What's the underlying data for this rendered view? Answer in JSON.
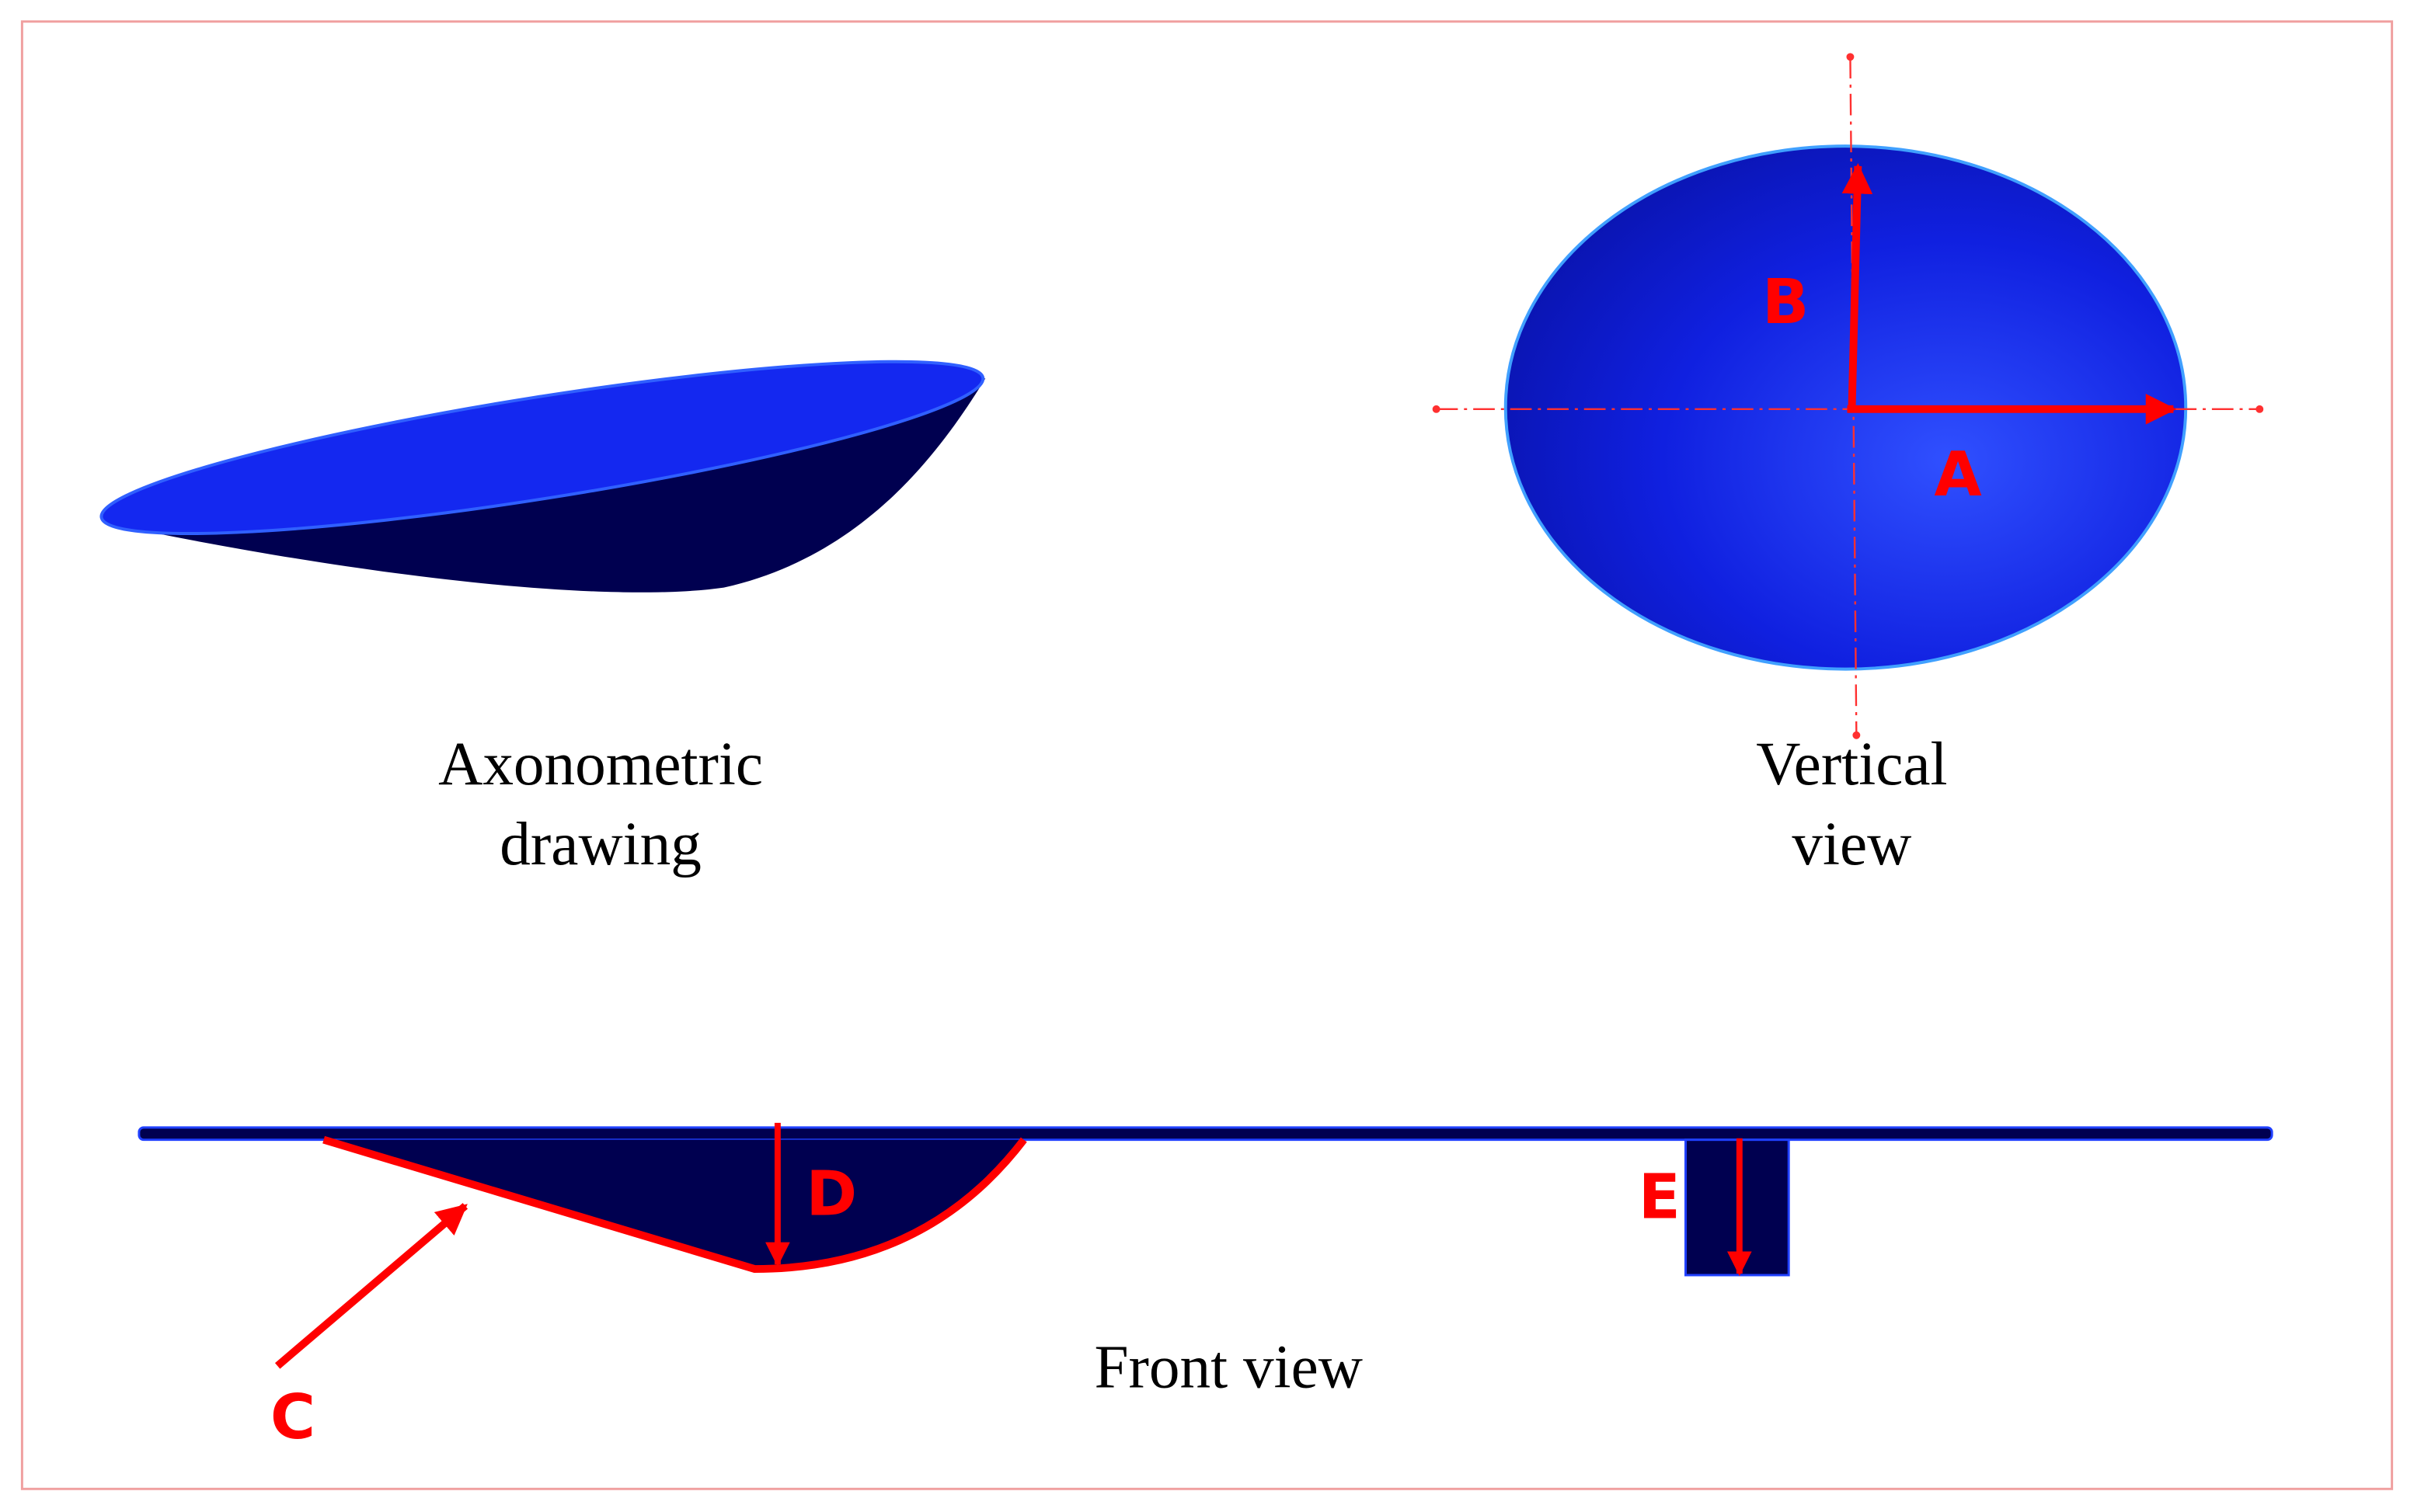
{
  "axonometric": {
    "caption": [
      "Axonometric",
      "drawing"
    ]
  },
  "vertical_view": {
    "caption": [
      "Vertical",
      "view"
    ],
    "dimension_labels": [
      "A",
      "B"
    ]
  },
  "front_view": {
    "caption": "Front view",
    "dimension_labels": [
      "C",
      "D",
      "E"
    ]
  }
}
